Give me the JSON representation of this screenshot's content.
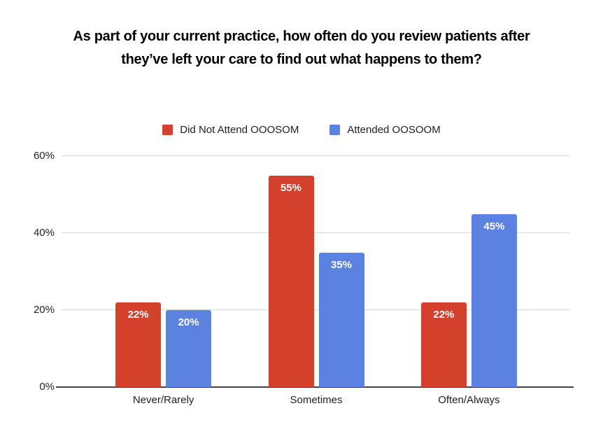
{
  "page": {
    "background": "#ffffff"
  },
  "title": {
    "full": "As part of your current practice, how often do you review patients after they’ve left your care to find out what happens to them?",
    "lines": [
      "As part of your current practice, how often do you review patients after",
      "they’ve left your care to find out what happens to them?"
    ]
  },
  "legend": {
    "items": [
      {
        "label": "Did Not Attend OOOSOM",
        "color": "#d3402b"
      },
      {
        "label": "Attended OOSOOM",
        "color": "#5b82e0"
      }
    ]
  },
  "chart_data": {
    "type": "bar",
    "title": "As part of your current practice, how often do you review patients after they’ve left your care to find out what happens to them?",
    "categories": [
      "Never/Rarely",
      "Sometimes",
      "Often/Always"
    ],
    "series": [
      {
        "name": "Did Not Attend OOOSOM",
        "color": "#d3402b",
        "values": [
          22,
          55,
          22
        ],
        "labels": [
          "22%",
          "55%",
          "22%"
        ]
      },
      {
        "name": "Attended OOSOOM",
        "color": "#5b82e0",
        "values": [
          20,
          35,
          45
        ],
        "labels": [
          "20%",
          "35%",
          "45%"
        ]
      }
    ],
    "xlabel": "",
    "ylabel": "",
    "y_axis": {
      "ticks": [
        0,
        20,
        40,
        60
      ],
      "tick_labels": [
        "0%",
        "20%",
        "40%",
        "60%"
      ],
      "ylim": [
        0,
        63
      ],
      "unit": "%"
    },
    "grid": true,
    "legend_position": "top",
    "value_label_style": "white-inside-top",
    "colors": {
      "grid": "#d9d9d9",
      "axis": "#424242",
      "text": "#1f1f1f"
    }
  }
}
